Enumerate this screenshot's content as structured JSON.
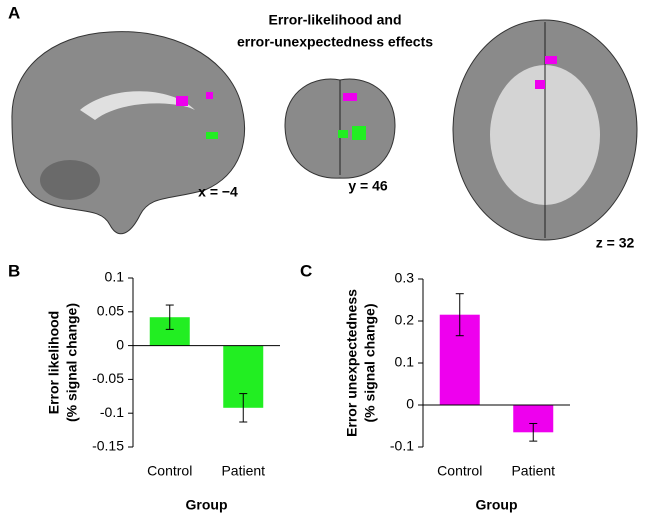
{
  "panel_labels": [
    "A",
    "B",
    "C"
  ],
  "figure_title": [
    "Error-likelihood and",
    "error-unexpectedness effects"
  ],
  "slice_labels": [
    "x = −4",
    "y = 46",
    "z = 32"
  ],
  "chart_data": [
    {
      "type": "bar",
      "ylabel": [
        "Error likelihood",
        "(% signal change)"
      ],
      "xlabel": "Group",
      "categories": [
        "Control",
        "Patient"
      ],
      "values": [
        0.042,
        -0.092
      ],
      "errors": [
        0.018,
        0.021
      ],
      "color": "#22ee22",
      "ylim": [
        -0.15,
        0.1
      ],
      "yticks": [
        0.1,
        0.05,
        0,
        -0.05,
        -0.1,
        -0.15
      ]
    },
    {
      "type": "bar",
      "ylabel": [
        "Error unexpectedness",
        "(% signal change)"
      ],
      "xlabel": "Group",
      "categories": [
        "Control",
        "Patient"
      ],
      "values": [
        0.215,
        -0.065
      ],
      "errors": [
        0.05,
        0.021
      ],
      "color": "#ee00ee",
      "ylim": [
        -0.1,
        0.3
      ],
      "yticks": [
        0.3,
        0.2,
        0.1,
        0,
        -0.1
      ]
    }
  ]
}
